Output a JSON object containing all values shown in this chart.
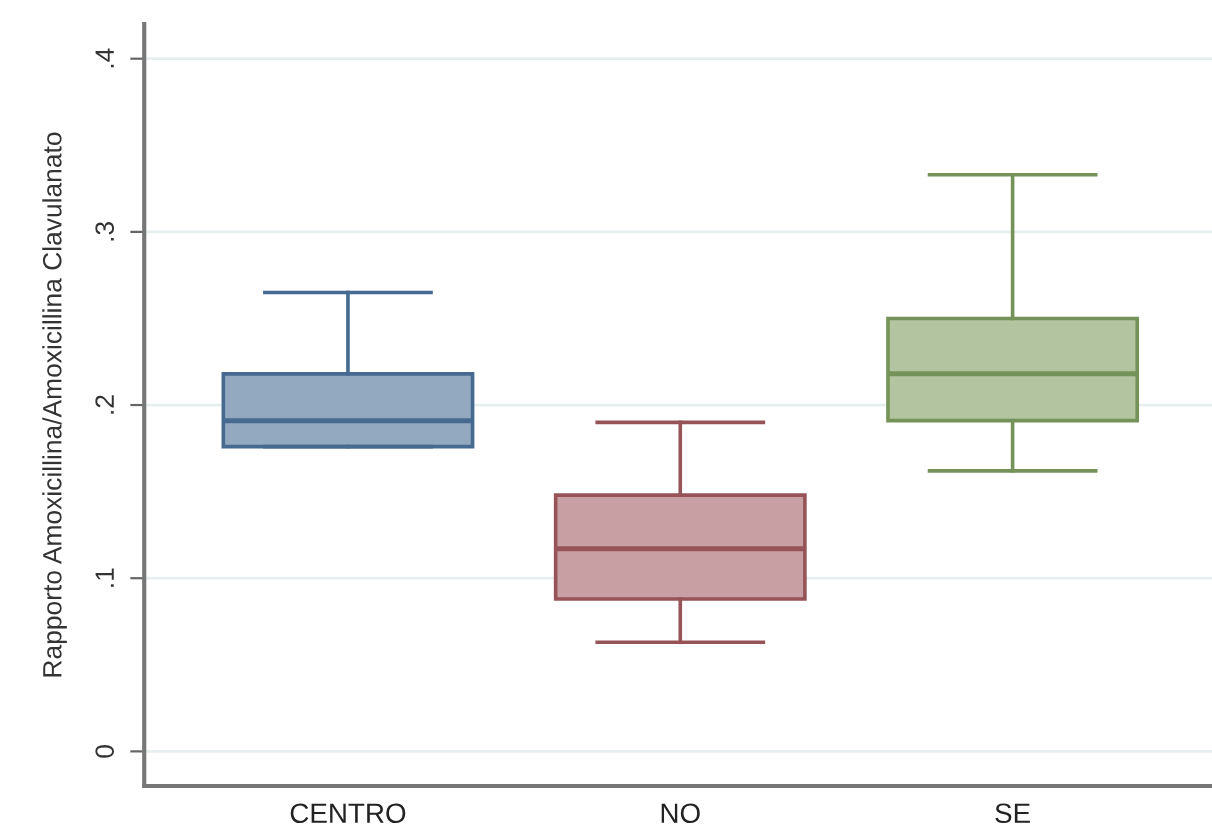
{
  "chart_data": {
    "type": "box",
    "ylabel": "Rapporto Amoxicillina/Amoxicillina Clavulanato",
    "categories": [
      "CENTRO",
      "NO",
      "SE"
    ],
    "boxes": [
      {
        "low": 0.176,
        "q1": 0.176,
        "median": 0.191,
        "q3": 0.218,
        "high": 0.265
      },
      {
        "low": 0.063,
        "q1": 0.088,
        "median": 0.117,
        "q3": 0.148,
        "high": 0.19
      },
      {
        "low": 0.162,
        "q1": 0.191,
        "median": 0.218,
        "q3": 0.25,
        "high": 0.333
      }
    ],
    "colors": [
      "#93a9c0",
      "#c8a0a3",
      "#b2c4a0"
    ],
    "ylim": [
      -0.02,
      0.42
    ],
    "yticks": [
      0,
      {
        "value": 0.1,
        "label": ".1"
      },
      {
        "value": 0.2,
        "label": ".2"
      },
      {
        "value": 0.3,
        "label": ".3"
      },
      {
        "value": 0.4,
        "label": ".4"
      }
    ],
    "grid": "y"
  }
}
